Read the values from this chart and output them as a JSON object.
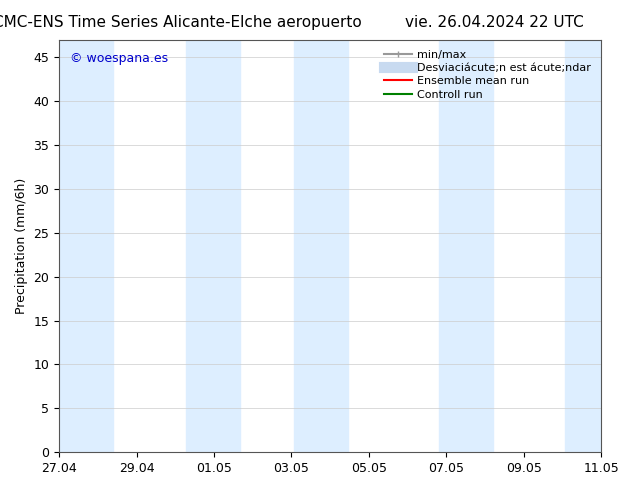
{
  "title_left": "CMC-ENS Time Series Alicante-Elche aeropuerto",
  "title_right": "vie. 26.04.2024 22 UTC",
  "ylabel": "Precipitation (mm/6h)",
  "xlabel_ticks": [
    "27.04",
    "29.04",
    "01.05",
    "03.05",
    "05.05",
    "07.05",
    "09.05",
    "11.05"
  ],
  "xlim": [
    0,
    15
  ],
  "ylim": [
    0,
    47
  ],
  "yticks": [
    0,
    5,
    10,
    15,
    20,
    25,
    30,
    35,
    40,
    45
  ],
  "background_color": "#ffffff",
  "plot_bg_color": "#ffffff",
  "shaded_bands": [
    {
      "xmin": 0.0,
      "xmax": 1.5,
      "color": "#ddeeff"
    },
    {
      "xmin": 3.5,
      "xmax": 5.0,
      "color": "#ddeeff"
    },
    {
      "xmin": 6.5,
      "xmax": 8.0,
      "color": "#ddeeff"
    },
    {
      "xmin": 10.5,
      "xmax": 12.0,
      "color": "#ddeeff"
    },
    {
      "xmin": 14.0,
      "xmax": 15.0,
      "color": "#ddeeff"
    }
  ],
  "legend_items": [
    {
      "label": "min/max",
      "color": "#aaaaaa",
      "lw": 1.5,
      "ls": "-"
    },
    {
      "label": "Desviaciácute;n est ácute;ndar",
      "color": "#c8daf0",
      "lw": 8,
      "ls": "-"
    },
    {
      "label": "Ensemble mean run",
      "color": "#ff0000",
      "lw": 1.5,
      "ls": "-"
    },
    {
      "label": "Controll run",
      "color": "#008000",
      "lw": 1.5,
      "ls": "-"
    }
  ],
  "watermark": "© woespana.es",
  "watermark_color": "#0000cc",
  "title_fontsize": 11,
  "tick_label_fontsize": 9,
  "ylabel_fontsize": 9,
  "legend_fontsize": 8
}
